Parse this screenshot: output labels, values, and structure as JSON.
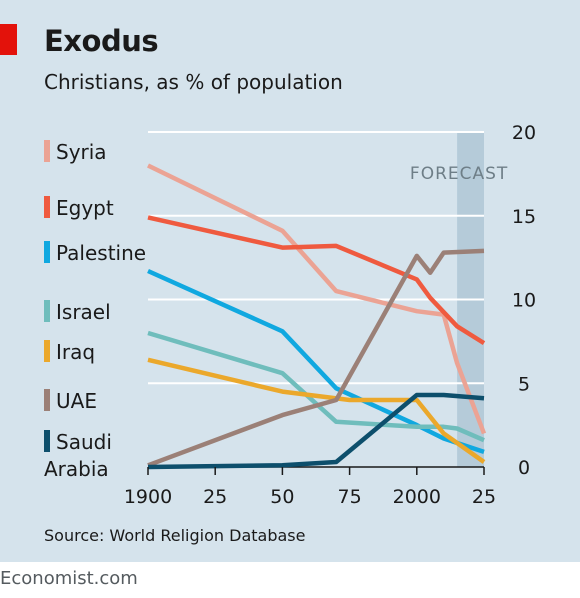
{
  "header": {
    "title": "Exodus",
    "subtitle": "Christians, as % of population"
  },
  "footer": {
    "source": "Source: World Religion Database",
    "brand": "Economist.com"
  },
  "chart_data": {
    "type": "line",
    "title": "Exodus",
    "subtitle": "Christians, as % of population",
    "xlabel": "",
    "ylabel": "",
    "xlim": [
      1900,
      2025
    ],
    "ylim": [
      0,
      20
    ],
    "x_ticks": [
      {
        "value": 1900,
        "label": "1900"
      },
      {
        "value": 1925,
        "label": "25"
      },
      {
        "value": 1950,
        "label": "50"
      },
      {
        "value": 1975,
        "label": "75"
      },
      {
        "value": 2000,
        "label": "2000"
      },
      {
        "value": 2025,
        "label": "25"
      }
    ],
    "y_ticks": [
      0,
      5,
      10,
      15,
      20
    ],
    "y_axis_side": "right",
    "grid": "horizontal",
    "forecast": {
      "label": "FORECAST",
      "from": 2015,
      "to": 2025,
      "color": "#b5cbd9"
    },
    "series": [
      {
        "name": "Syria",
        "color": "#eba394",
        "values": [
          [
            1900,
            18.0
          ],
          [
            1950,
            14.1
          ],
          [
            1970,
            10.5
          ],
          [
            2000,
            9.3
          ],
          [
            2010,
            9.1
          ],
          [
            2015,
            6.2
          ],
          [
            2025,
            2.0
          ]
        ]
      },
      {
        "name": "Egypt",
        "color": "#ef5a3f",
        "values": [
          [
            1900,
            14.9
          ],
          [
            1950,
            13.1
          ],
          [
            1970,
            13.2
          ],
          [
            2000,
            11.2
          ],
          [
            2005,
            10.1
          ],
          [
            2015,
            8.4
          ],
          [
            2025,
            7.4
          ]
        ]
      },
      {
        "name": "Palestine",
        "color": "#10a8e0",
        "values": [
          [
            1900,
            11.7
          ],
          [
            1950,
            8.1
          ],
          [
            1970,
            4.7
          ],
          [
            2000,
            2.5
          ],
          [
            2010,
            1.7
          ],
          [
            2025,
            0.9
          ]
        ]
      },
      {
        "name": "Israel",
        "color": "#6fbdbc",
        "values": [
          [
            1900,
            8.0
          ],
          [
            1950,
            5.6
          ],
          [
            1970,
            2.7
          ],
          [
            2000,
            2.4
          ],
          [
            2010,
            2.4
          ],
          [
            2015,
            2.3
          ],
          [
            2025,
            1.6
          ]
        ]
      },
      {
        "name": "Iraq",
        "color": "#eba82b",
        "values": [
          [
            1900,
            6.4
          ],
          [
            1950,
            4.5
          ],
          [
            1975,
            4.0
          ],
          [
            2000,
            4.0
          ],
          [
            2010,
            2.0
          ],
          [
            2025,
            0.3
          ]
        ]
      },
      {
        "name": "UAE",
        "color": "#9b8077",
        "values": [
          [
            1900,
            0.1
          ],
          [
            1950,
            3.1
          ],
          [
            1970,
            4.0
          ],
          [
            2000,
            12.6
          ],
          [
            2005,
            11.6
          ],
          [
            2010,
            12.8
          ],
          [
            2025,
            12.9
          ]
        ]
      },
      {
        "name": "Saudi Arabia",
        "color": "#0d4f6c",
        "values": [
          [
            1900,
            0.0
          ],
          [
            1950,
            0.1
          ],
          [
            1970,
            0.3
          ],
          [
            2000,
            4.3
          ],
          [
            2010,
            4.3
          ],
          [
            2025,
            4.1
          ]
        ]
      }
    ]
  }
}
